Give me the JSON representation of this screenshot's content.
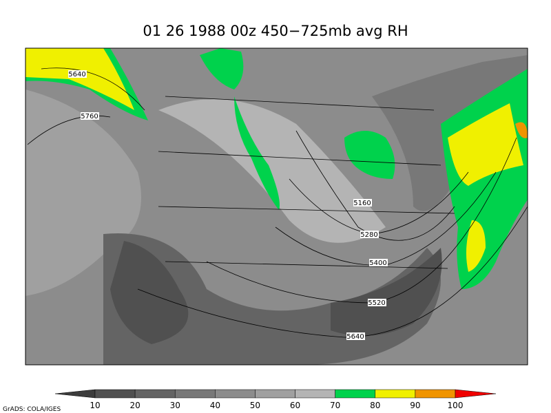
{
  "title": "01 26 1988 00z 450−725mb avg RH",
  "contours": {
    "labels": [
      "5640",
      "5760",
      "5160",
      "5280",
      "5400",
      "5520",
      "5640"
    ]
  },
  "colorbar": {
    "ticks": [
      10,
      20,
      30,
      40,
      50,
      60,
      70,
      80,
      90,
      100
    ],
    "colors": [
      "#3c3c3c",
      "#505050",
      "#646464",
      "#787878",
      "#8c8c8c",
      "#a0a0a0",
      "#b4b4b4",
      "#00d24c",
      "#f0f000",
      "#f09400",
      "#f00000"
    ]
  },
  "footer": "GrADS: COLA/IGES"
}
